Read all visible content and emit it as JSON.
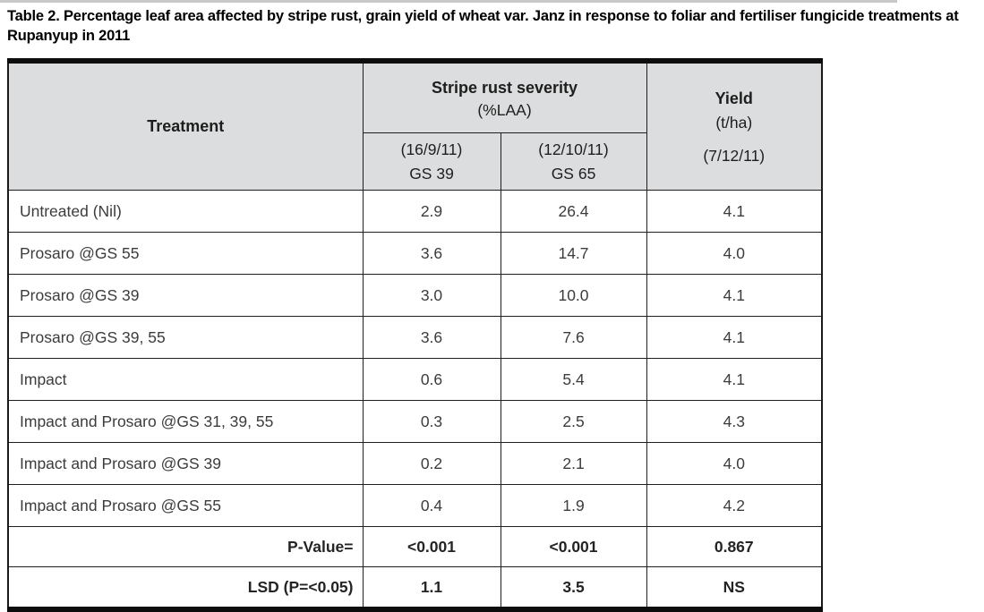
{
  "title": "Table 2. Percentage leaf area affected by stripe rust, grain yield of wheat var. Janz in response to foliar and fertiliser fungicide treatments at Rupanyup in 2011",
  "colors": {
    "header_bg": "#dcddde",
    "border": "#1f1f1f",
    "thick_rule": "#0d0d0d"
  },
  "table": {
    "header": {
      "treatment": "Treatment",
      "severity_group": "Stripe rust severity",
      "severity_unit": "(%LAA)",
      "col1_date": "(16/9/11)",
      "col1_gs": "GS 39",
      "col2_date": "(12/10/11)",
      "col2_gs": "GS 65",
      "yield_label": "Yield",
      "yield_unit": "(t/ha)",
      "yield_date": "(7/12/11)"
    },
    "rows": [
      {
        "treatment": "Untreated (Nil)",
        "gs39": "2.9",
        "gs65": "26.4",
        "yield": "4.1"
      },
      {
        "treatment": "Prosaro @GS 55",
        "gs39": "3.6",
        "gs65": "14.7",
        "yield": "4.0"
      },
      {
        "treatment": "Prosaro @GS 39",
        "gs39": "3.0",
        "gs65": "10.0",
        "yield": "4.1"
      },
      {
        "treatment": "Prosaro @GS 39, 55",
        "gs39": "3.6",
        "gs65": "7.6",
        "yield": "4.1"
      },
      {
        "treatment": "Impact",
        "gs39": "0.6",
        "gs65": "5.4",
        "yield": "4.1"
      },
      {
        "treatment": "Impact and Prosaro @GS 31, 39, 55",
        "gs39": "0.3",
        "gs65": "2.5",
        "yield": "4.3"
      },
      {
        "treatment": "Impact and Prosaro @GS 39",
        "gs39": "0.2",
        "gs65": "2.1",
        "yield": "4.0"
      },
      {
        "treatment": "Impact and Prosaro @GS 55",
        "gs39": "0.4",
        "gs65": "1.9",
        "yield": "4.2"
      }
    ],
    "footer": [
      {
        "label": "P-Value=",
        "gs39": "<0.001",
        "gs65": "<0.001",
        "yield": "0.867"
      },
      {
        "label": "LSD (P=<0.05)",
        "gs39": "1.1",
        "gs65": "3.5",
        "yield": "NS"
      }
    ]
  }
}
